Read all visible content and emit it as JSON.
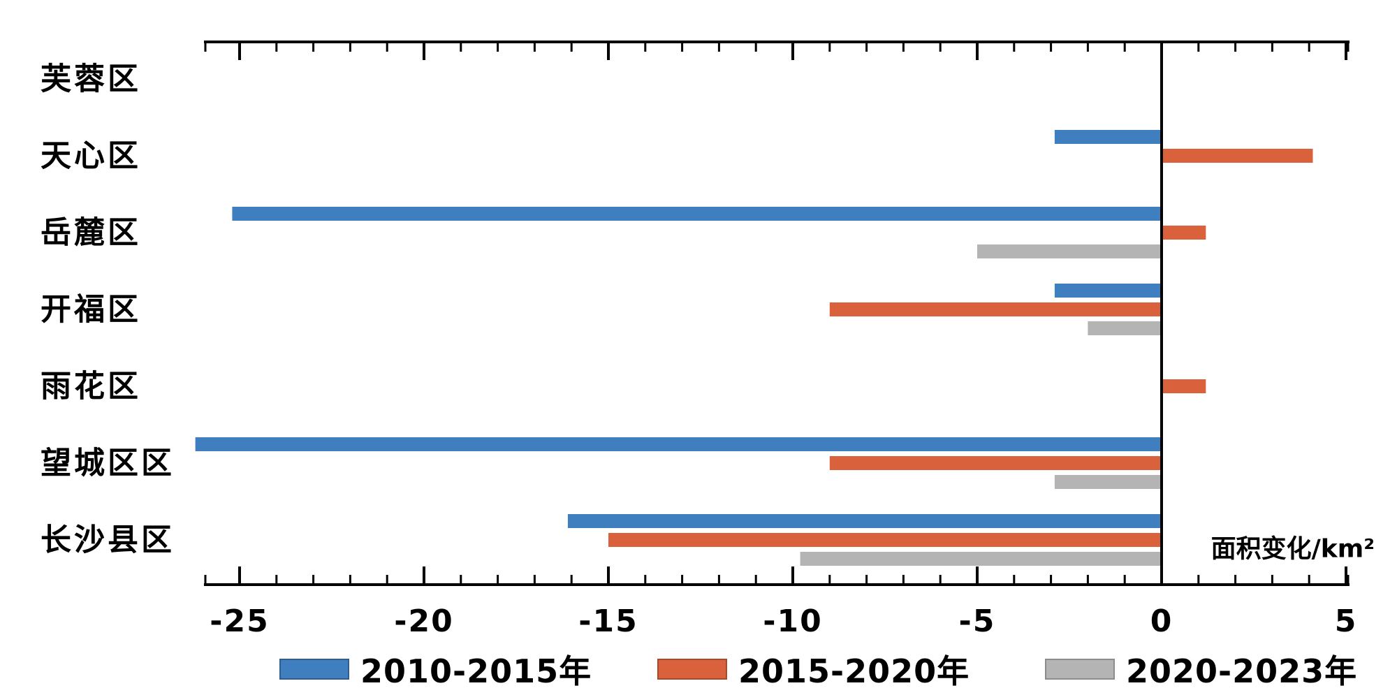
{
  "chart_data": {
    "type": "bar",
    "orientation": "horizontal",
    "title": "",
    "xlabel": "面积变化/km²",
    "ylabel": "",
    "categories": [
      "芙蓉区",
      "天心区",
      "岳麓区",
      "开福区",
      "雨花区",
      "望城区区",
      "长沙县区"
    ],
    "series": [
      {
        "name": "2010-2015年",
        "color": "#3f7fbf",
        "edge_color": "#2d5e8e",
        "values": [
          0,
          -2.9,
          -25.2,
          -2.9,
          0,
          -26.2,
          -16.1
        ]
      },
      {
        "name": "2015-2020年",
        "color": "#d9613c",
        "edge_color": "#a8492c",
        "values": [
          0,
          4.1,
          1.2,
          -9.0,
          1.2,
          -9.0,
          -15.0
        ]
      },
      {
        "name": "2020-2023年",
        "color": "#b4b4b4",
        "edge_color": "#8c8c8c",
        "values": [
          0,
          0,
          -5.0,
          -2.0,
          0,
          -2.9,
          -9.8
        ]
      }
    ],
    "xlim": [
      -26.0,
      5.1
    ],
    "x_major_ticks": [
      -25,
      -20,
      -15,
      -10,
      -5,
      0,
      5
    ],
    "x_tick_labels": [
      "-25",
      "-20",
      "-15",
      "-10",
      "-5",
      "0",
      "5"
    ],
    "x_minor_tick_step": 1,
    "grid": false,
    "zero_line": true,
    "legend_position": "bottom",
    "axis_color": "#000000",
    "text_color": "#000000"
  }
}
